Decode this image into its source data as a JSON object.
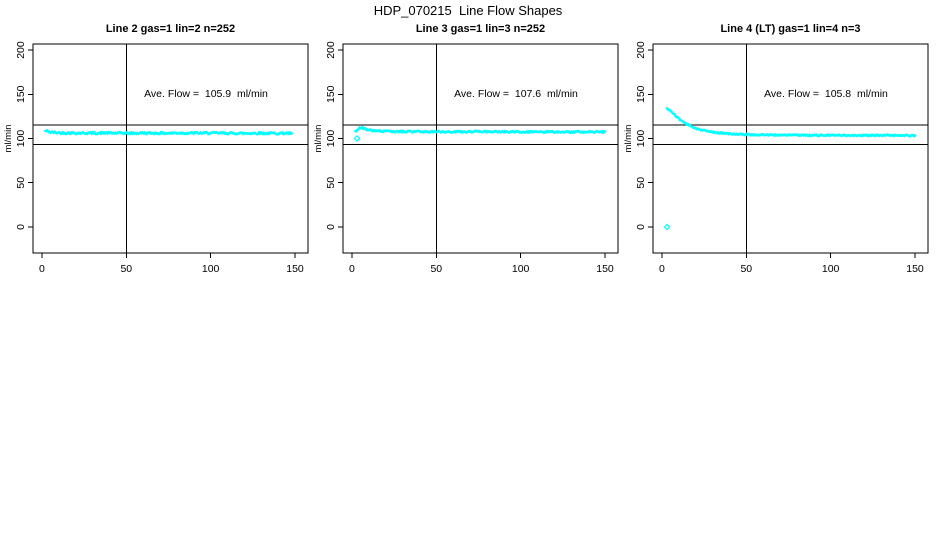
{
  "main_title": "HDP_070215  Line Flow Shapes",
  "chart_data": [
    {
      "type": "scatter",
      "title": "Line 2 gas=1 lin=2 n=252",
      "line": 2,
      "gas": 1,
      "lin": 2,
      "n": 252,
      "annotation": "Ave. Flow =  105.9  ml/min",
      "ave_flow": 105.9,
      "ylabel": "ml/min",
      "xticks": [
        0,
        50,
        100,
        150
      ],
      "yticks": [
        0,
        50,
        100,
        150,
        200
      ],
      "xlim": [
        -5.3,
        157.7
      ],
      "ylim": [
        -29.4,
        206.8
      ],
      "ref_hlines": [
        115,
        93
      ],
      "ref_vline": 50,
      "marker_color": "#00FFFF",
      "band_halfwidth": 1.1,
      "series": [
        [
          2,
          108.2
        ],
        [
          3,
          108.6
        ],
        [
          4,
          107.8
        ],
        [
          5,
          107.2
        ],
        [
          7,
          106.8
        ],
        [
          10,
          106.5
        ],
        [
          15,
          106.3
        ],
        [
          20,
          106.2
        ],
        [
          30,
          106.1
        ],
        [
          40,
          106.2
        ],
        [
          50,
          106.0
        ],
        [
          60,
          106.1
        ],
        [
          70,
          106.0
        ],
        [
          80,
          106.2
        ],
        [
          90,
          106.1
        ],
        [
          100,
          106.2
        ],
        [
          110,
          106.0
        ],
        [
          120,
          105.9
        ],
        [
          130,
          106.0
        ],
        [
          140,
          105.9
        ],
        [
          148,
          105.9
        ]
      ],
      "outliers": []
    },
    {
      "type": "scatter",
      "title": "Line 3 gas=1 lin=3 n=252",
      "line": 3,
      "gas": 1,
      "lin": 3,
      "n": 252,
      "annotation": "Ave. Flow =  107.6  ml/min",
      "ave_flow": 107.6,
      "ylabel": "ml/min",
      "xticks": [
        0,
        50,
        100,
        150
      ],
      "yticks": [
        0,
        50,
        100,
        150,
        200
      ],
      "xlim": [
        -5.3,
        157.7
      ],
      "ylim": [
        -29.4,
        206.8
      ],
      "ref_hlines": [
        115,
        93
      ],
      "ref_vline": 50,
      "marker_color": "#00FFFF",
      "band_halfwidth": 0.9,
      "series": [
        [
          2,
          107.5
        ],
        [
          3,
          109.5
        ],
        [
          4,
          111.8
        ],
        [
          5,
          112.6
        ],
        [
          6,
          112.2
        ],
        [
          7,
          111.3
        ],
        [
          8,
          110.6
        ],
        [
          10,
          109.7
        ],
        [
          12,
          109.0
        ],
        [
          15,
          108.5
        ],
        [
          20,
          108.1
        ],
        [
          25,
          107.9
        ],
        [
          30,
          107.8
        ],
        [
          40,
          107.7
        ],
        [
          50,
          107.7
        ],
        [
          60,
          107.6
        ],
        [
          80,
          107.6
        ],
        [
          100,
          107.5
        ],
        [
          120,
          107.4
        ],
        [
          140,
          107.4
        ],
        [
          150,
          107.4
        ]
      ],
      "outliers": [
        [
          3,
          100
        ]
      ]
    },
    {
      "type": "scatter",
      "title": "Line 4 (LT) gas=1 lin=4 n=3",
      "line": 4,
      "line_note": "LT",
      "gas": 1,
      "lin": 4,
      "n": 3,
      "annotation": "Ave. Flow =  105.8  ml/min",
      "ave_flow": 105.8,
      "ylabel": "ml/min",
      "xticks": [
        0,
        50,
        100,
        150
      ],
      "yticks": [
        0,
        50,
        100,
        150,
        200
      ],
      "xlim": [
        -5.3,
        157.7
      ],
      "ylim": [
        -29.4,
        206.8
      ],
      "ref_hlines": [
        115,
        93
      ],
      "ref_vline": 50,
      "marker_color": "#00FFFF",
      "band_halfwidth": 0.8,
      "series": [
        [
          3,
          133.5
        ],
        [
          4,
          132.8
        ],
        [
          5,
          131.2
        ],
        [
          6,
          129.4
        ],
        [
          7,
          127.6
        ],
        [
          8,
          125.8
        ],
        [
          9,
          124.0
        ],
        [
          10,
          122.4
        ],
        [
          11,
          120.9
        ],
        [
          12,
          119.5
        ],
        [
          13,
          118.2
        ],
        [
          14,
          117.0
        ],
        [
          15,
          115.9
        ],
        [
          16,
          114.9
        ],
        [
          17,
          114.0
        ],
        [
          18,
          113.2
        ],
        [
          19,
          112.4
        ],
        [
          20,
          111.7
        ],
        [
          22,
          110.5
        ],
        [
          24,
          109.5
        ],
        [
          26,
          108.6
        ],
        [
          28,
          107.9
        ],
        [
          30,
          107.3
        ],
        [
          33,
          106.6
        ],
        [
          36,
          106.0
        ],
        [
          40,
          105.4
        ],
        [
          45,
          104.9
        ],
        [
          50,
          104.5
        ],
        [
          55,
          104.3
        ],
        [
          60,
          104.1
        ],
        [
          70,
          103.9
        ],
        [
          80,
          103.8
        ],
        [
          90,
          103.7
        ],
        [
          100,
          103.6
        ],
        [
          110,
          103.6
        ],
        [
          120,
          103.5
        ],
        [
          130,
          103.5
        ],
        [
          140,
          103.4
        ],
        [
          150,
          103.4
        ]
      ],
      "outliers": [
        [
          3,
          0
        ]
      ]
    }
  ]
}
